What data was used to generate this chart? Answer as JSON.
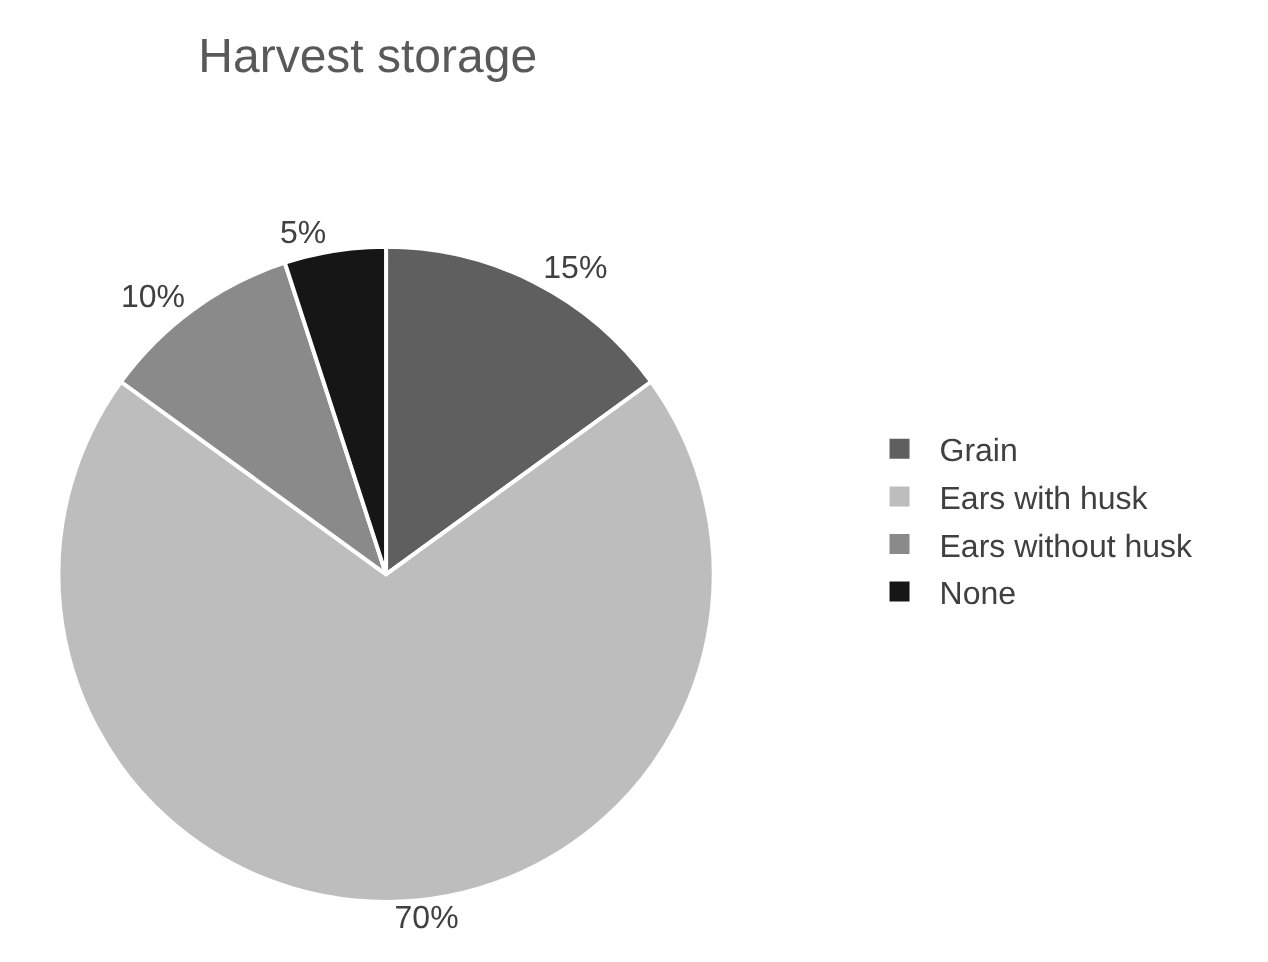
{
  "chart_data": {
    "type": "pie",
    "title": "Harvest storage",
    "categories": [
      "Grain",
      "Ears with husk",
      "Ears without husk",
      "None"
    ],
    "values": [
      15,
      70,
      10,
      5
    ],
    "value_labels": [
      "15%",
      "70%",
      "10%",
      "5%"
    ],
    "colors": [
      "#5f5f5f",
      "#bdbdbd",
      "#8a8a8a",
      "#161616"
    ],
    "legend": "right"
  }
}
